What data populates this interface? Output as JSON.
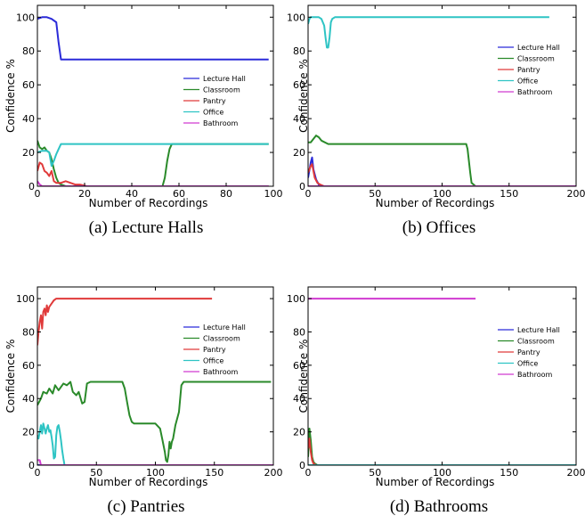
{
  "chart_data": [
    {
      "type": "line",
      "caption": "(a) Lecture Halls",
      "xlabel": "Number of Recordings",
      "ylabel": "Confidence %",
      "xlim": [
        0,
        100
      ],
      "ylim": [
        0,
        107
      ],
      "xticks": [
        0,
        20,
        40,
        60,
        80,
        100
      ],
      "yticks": [
        0,
        20,
        40,
        60,
        80,
        100
      ],
      "grid": false,
      "legend": "right",
      "series": [
        {
          "name": "Lecture Hall",
          "color": "#2b2bd9",
          "x": [
            0,
            2,
            4,
            6,
            8,
            9,
            10,
            15,
            50,
            98
          ],
          "y": [
            99,
            100,
            100,
            99,
            97,
            85,
            75,
            75,
            75,
            75
          ]
        },
        {
          "name": "Classroom",
          "color": "#2a8a2a",
          "x": [
            0,
            1,
            2,
            3,
            4,
            5,
            6,
            7,
            8,
            9,
            10,
            12,
            15,
            20,
            40,
            53,
            54,
            55,
            56,
            57,
            60,
            98
          ],
          "y": [
            27,
            23,
            22,
            23,
            21,
            20,
            16,
            10,
            5,
            2,
            1,
            0,
            0,
            0,
            0,
            0,
            5,
            15,
            22,
            25,
            25,
            25
          ]
        },
        {
          "name": "Pantry",
          "color": "#e03a3a",
          "x": [
            0,
            1,
            2,
            3,
            4,
            5,
            6,
            7,
            8,
            10,
            12,
            14,
            16,
            18,
            21,
            30,
            98
          ],
          "y": [
            9,
            14,
            13,
            9,
            8,
            6,
            9,
            3,
            2,
            2,
            3,
            2,
            1,
            1,
            0,
            0,
            0
          ]
        },
        {
          "name": "Office",
          "color": "#2ec4c4",
          "x": [
            0,
            2,
            4,
            5,
            6,
            7,
            8,
            9,
            10,
            15,
            30,
            60,
            98
          ],
          "y": [
            20,
            21,
            21,
            20,
            12,
            15,
            19,
            22,
            25,
            25,
            25,
            25,
            25
          ]
        },
        {
          "name": "Bathroom",
          "color": "#d13ad1",
          "x": [
            0,
            1,
            2,
            3,
            10,
            98
          ],
          "y": [
            3,
            1,
            0,
            0,
            0,
            0
          ]
        }
      ]
    },
    {
      "type": "line",
      "caption": "(b) Offices",
      "xlabel": "Number of Recordings",
      "ylabel": "Confidence %",
      "xlim": [
        0,
        200
      ],
      "ylim": [
        0,
        107
      ],
      "xticks": [
        0,
        50,
        100,
        150,
        200
      ],
      "yticks": [
        0,
        20,
        40,
        60,
        80,
        100
      ],
      "grid": false,
      "legend": "right",
      "series": [
        {
          "name": "Lecture Hall",
          "color": "#2b2bd9",
          "x": [
            0,
            2,
            3,
            4,
            6,
            8,
            10,
            20,
            200
          ],
          "y": [
            5,
            14,
            17,
            10,
            4,
            1,
            0,
            0,
            0
          ]
        },
        {
          "name": "Classroom",
          "color": "#2a8a2a",
          "x": [
            0,
            2,
            4,
            6,
            8,
            10,
            15,
            20,
            60,
            100,
            118,
            119,
            120,
            121,
            122,
            125,
            200
          ],
          "y": [
            26,
            26,
            28,
            30,
            29,
            27,
            25,
            25,
            25,
            25,
            25,
            22,
            15,
            8,
            2,
            0,
            0
          ]
        },
        {
          "name": "Pantry",
          "color": "#e03a3a",
          "x": [
            0,
            2,
            3,
            4,
            5,
            7,
            9,
            12,
            20,
            200
          ],
          "y": [
            8,
            12,
            13,
            9,
            5,
            2,
            1,
            0,
            0,
            0
          ]
        },
        {
          "name": "Office",
          "color": "#2ec4c4",
          "x": [
            0,
            1,
            2,
            4,
            8,
            10,
            12,
            13,
            14,
            15,
            16,
            17,
            18,
            20,
            50,
            100,
            180
          ],
          "y": [
            96,
            99,
            100,
            100,
            100,
            99,
            95,
            88,
            82,
            82,
            88,
            97,
            99,
            100,
            100,
            100,
            100
          ]
        },
        {
          "name": "Bathroom",
          "color": "#d13ad1",
          "x": [
            0,
            200
          ],
          "y": [
            0,
            0
          ]
        }
      ]
    },
    {
      "type": "line",
      "caption": "(c) Pantries",
      "xlabel": "Number of Recordings",
      "ylabel": "Confidence %",
      "xlim": [
        0,
        200
      ],
      "ylim": [
        0,
        107
      ],
      "xticks": [
        0,
        50,
        100,
        150,
        200
      ],
      "yticks": [
        0,
        20,
        40,
        60,
        80,
        100
      ],
      "grid": false,
      "legend": "right",
      "series": [
        {
          "name": "Lecture Hall",
          "color": "#2b2bd9",
          "x": [
            0,
            200
          ],
          "y": [
            0,
            0
          ]
        },
        {
          "name": "Classroom",
          "color": "#2a8a2a",
          "x": [
            0,
            3,
            5,
            8,
            10,
            13,
            15,
            18,
            22,
            25,
            28,
            30,
            33,
            35,
            38,
            40,
            42,
            45,
            55,
            65,
            72,
            74,
            76,
            78,
            80,
            82,
            85,
            95,
            100,
            104,
            106,
            108,
            109,
            110,
            111,
            112,
            113,
            114,
            115,
            117,
            120,
            122,
            124,
            130,
            150,
            198
          ],
          "y": [
            36,
            40,
            44,
            43,
            46,
            43,
            48,
            45,
            49,
            48,
            50,
            44,
            42,
            44,
            37,
            38,
            49,
            50,
            50,
            50,
            50,
            46,
            38,
            30,
            26,
            25,
            25,
            25,
            25,
            22,
            15,
            8,
            3,
            2,
            6,
            14,
            10,
            14,
            16,
            24,
            32,
            48,
            50,
            50,
            50,
            50
          ]
        },
        {
          "name": "Pantry",
          "color": "#e03a3a",
          "x": [
            0,
            1,
            2,
            3,
            4,
            5,
            6,
            7,
            8,
            9,
            10,
            12,
            14,
            16,
            18,
            20,
            30,
            60,
            100,
            148
          ],
          "y": [
            72,
            80,
            86,
            90,
            82,
            92,
            94,
            90,
            96,
            92,
            95,
            97,
            99,
            100,
            100,
            100,
            100,
            100,
            100,
            100
          ]
        },
        {
          "name": "Office",
          "color": "#2ec4c4",
          "x": [
            0,
            1,
            2,
            3,
            4,
            5,
            6,
            7,
            8,
            9,
            10,
            11,
            12,
            13,
            14,
            15,
            16,
            17,
            18,
            19,
            20,
            21,
            22,
            23,
            25,
            40,
            100,
            175
          ],
          "y": [
            18,
            16,
            20,
            24,
            19,
            25,
            22,
            19,
            22,
            24,
            20,
            21,
            17,
            12,
            4,
            5,
            18,
            23,
            24,
            20,
            15,
            9,
            4,
            0,
            0,
            0,
            0,
            0
          ]
        },
        {
          "name": "Bathroom",
          "color": "#d13ad1",
          "x": [
            0,
            2,
            3,
            5,
            200
          ],
          "y": [
            3,
            3,
            0,
            0,
            0
          ]
        }
      ]
    },
    {
      "type": "line",
      "caption": "(d)  Bathrooms",
      "xlabel": "Number of Recordings",
      "ylabel": "Confidence %",
      "xlim": [
        0,
        200
      ],
      "ylim": [
        0,
        107
      ],
      "xticks": [
        0,
        50,
        100,
        150,
        200
      ],
      "yticks": [
        0,
        20,
        40,
        60,
        80,
        100
      ],
      "grid": false,
      "legend": "right",
      "series": [
        {
          "name": "Lecture Hall",
          "color": "#2b2bd9",
          "x": [
            0,
            200
          ],
          "y": [
            0,
            0
          ]
        },
        {
          "name": "Classroom",
          "color": "#2a8a2a",
          "x": [
            0,
            1,
            2,
            3,
            4,
            5,
            7,
            200
          ],
          "y": [
            5,
            22,
            15,
            5,
            2,
            1,
            0,
            0
          ]
        },
        {
          "name": "Pantry",
          "color": "#e03a3a",
          "x": [
            0,
            1,
            2,
            3,
            4,
            6,
            200
          ],
          "y": [
            10,
            16,
            8,
            3,
            1,
            0,
            0
          ]
        },
        {
          "name": "Office",
          "color": "#2ec4c4",
          "x": [
            0,
            200
          ],
          "y": [
            0,
            0
          ]
        },
        {
          "name": "Bathroom",
          "color": "#d13ad1",
          "x": [
            0,
            125
          ],
          "y": [
            100,
            100
          ]
        }
      ]
    }
  ]
}
